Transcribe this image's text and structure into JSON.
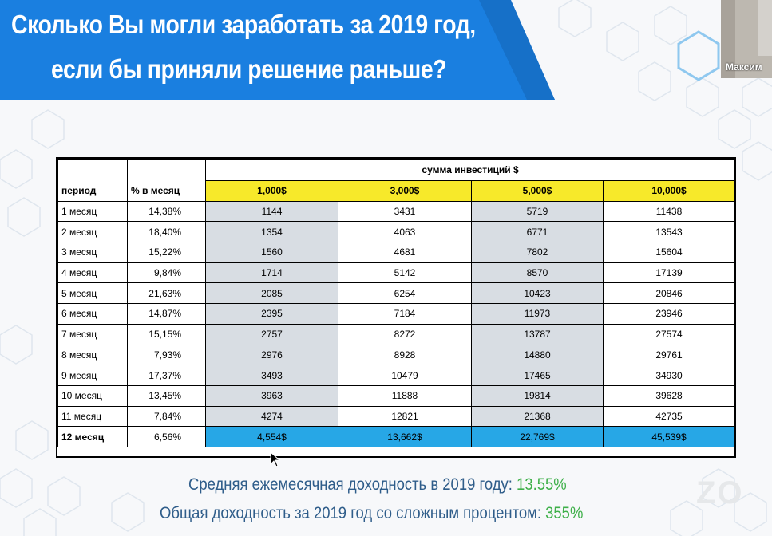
{
  "title": {
    "line1": "Сколько Вы могли заработать за 2019 год,",
    "line2": "если бы приняли решение раньше?"
  },
  "webcam": {
    "name": "Максим"
  },
  "table": {
    "group_header": "сумма инвестиций $",
    "col_period": "период",
    "col_pct": "% в месяц",
    "amounts": [
      "1,000$",
      "3,000$",
      "5,000$",
      "10,000$"
    ],
    "rows": [
      {
        "period": "1 месяц",
        "pct": "14,38%",
        "v": [
          "1144",
          "3431",
          "5719",
          "11438"
        ]
      },
      {
        "period": "2 месяц",
        "pct": "18,40%",
        "v": [
          "1354",
          "4063",
          "6771",
          "13543"
        ]
      },
      {
        "period": "3 месяц",
        "pct": "15,22%",
        "v": [
          "1560",
          "4681",
          "7802",
          "15604"
        ]
      },
      {
        "period": "4 месяц",
        "pct": "9,84%",
        "v": [
          "1714",
          "5142",
          "8570",
          "17139"
        ]
      },
      {
        "period": "5 месяц",
        "pct": "21,63%",
        "v": [
          "2085",
          "6254",
          "10423",
          "20846"
        ]
      },
      {
        "period": "6 месяц",
        "pct": "14,87%",
        "v": [
          "2395",
          "7184",
          "11973",
          "23946"
        ]
      },
      {
        "period": "7 месяц",
        "pct": "15,15%",
        "v": [
          "2757",
          "8272",
          "13787",
          "27574"
        ]
      },
      {
        "period": "8 месяц",
        "pct": "7,93%",
        "v": [
          "2976",
          "8928",
          "14880",
          "29761"
        ]
      },
      {
        "period": "9 месяц",
        "pct": "17,37%",
        "v": [
          "3493",
          "10479",
          "17465",
          "34930"
        ]
      },
      {
        "period": "10 месяц",
        "pct": "13,45%",
        "v": [
          "3963",
          "11888",
          "19814",
          "39628"
        ]
      },
      {
        "period": "11 месяц",
        "pct": "7,84%",
        "v": [
          "4274",
          "12821",
          "21368",
          "42735"
        ]
      },
      {
        "period": "12 месяц",
        "pct": "6,56%",
        "v": [
          "4,554$",
          "13,662$",
          "22,769$",
          "45,539$"
        ]
      }
    ]
  },
  "summary": {
    "avg_label": "Средняя ежемесячная доходность в 2019 году:",
    "avg_value": "13.55%",
    "total_label": "Общая доходность за 2019 год со сложным процентом:",
    "total_value": "355%"
  },
  "watermark": "ZO",
  "colors": {
    "banner": "#1a7fe0",
    "yellow": "#f7e92a",
    "grey": "#d8dde3",
    "blue": "#27a7e6",
    "summary_text": "#2f5d8a",
    "summary_value": "#3fb04a"
  }
}
